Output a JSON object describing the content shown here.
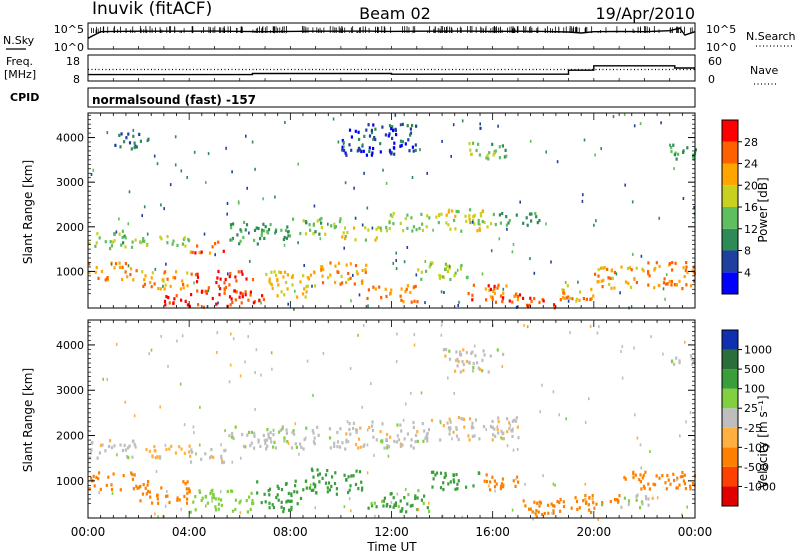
{
  "header": {
    "station": "Inuvik (fitACF)",
    "beam": "Beam 02",
    "date": "19/Apr/2010"
  },
  "strip": {
    "left_label": "N.Sky",
    "left_tick_top": "10^5",
    "left_tick_bottom": "10^0",
    "right_label": "N.Search",
    "right_tick_top": "10^5",
    "right_tick_bottom": "10^0"
  },
  "freq": {
    "label_line1": "Freq.",
    "label_line2": "[MHz]",
    "tick_top": "18",
    "tick_bottom": "8",
    "right_label": "Nave",
    "right_tick_top": "60",
    "right_tick_bottom": "0"
  },
  "cpid": {
    "label": "CPID",
    "text": "normalsound (fast) -157"
  },
  "power_panel": {
    "ylabel": "Slant Range [km]",
    "colorbar_label": "Power [dB]",
    "colorbar_ticks": [
      "28",
      "24",
      "20",
      "16",
      "12",
      "8",
      "4"
    ]
  },
  "velocity_panel": {
    "ylabel": "Slant Range [km]",
    "colorbar_label": "Velocity [m s⁻¹]",
    "colorbar_ticks": [
      "1000",
      "500",
      "100",
      "25",
      "-25",
      "-100",
      "-500",
      "-1000"
    ]
  },
  "xaxis": {
    "label": "Time UT",
    "ticks": [
      "00:00",
      "04:00",
      "08:00",
      "12:00",
      "16:00",
      "20:00",
      "00:00"
    ]
  },
  "colors": {
    "power_scale": [
      "#0000ff",
      "#2040a0",
      "#2e8b57",
      "#5fbf5f",
      "#c8d020",
      "#ffa500",
      "#ff6000",
      "#ff0000"
    ],
    "velocity_scale": [
      "#1030b0",
      "#2a6e3a",
      "#3a9e3a",
      "#80d040",
      "#bebebe",
      "#ffb040",
      "#ff8000",
      "#ff4000",
      "#e00000"
    ]
  },
  "chart_data": [
    {
      "type": "line",
      "title": "N.Sky / N.Search",
      "x_range_hours": [
        0,
        24
      ],
      "yscale": "log",
      "ylim": [
        "10^0",
        "10^5"
      ],
      "series": [
        {
          "name": "N.Sky",
          "x": [
            0,
            0.5,
            1,
            2,
            3,
            4,
            5,
            6,
            7,
            8,
            9,
            10,
            11,
            12,
            13,
            14,
            15,
            16,
            17,
            18,
            19,
            19.5,
            20,
            21,
            22,
            23,
            23.4,
            23.6,
            24
          ],
          "y": [
            100,
            3000,
            3500,
            4000,
            4000,
            3800,
            4200,
            3500,
            3000,
            3500,
            4000,
            3800,
            4200,
            3500,
            3800,
            4000,
            4200,
            3500,
            3800,
            3500,
            2500,
            1500,
            3000,
            3500,
            3000,
            5000,
            20000,
            500,
            3000
          ]
        },
        {
          "name": "N.Search",
          "style": "dotted",
          "x": [
            0,
            24
          ],
          "y": [
            1,
            1
          ]
        }
      ]
    },
    {
      "type": "line",
      "title": "Freq. [MHz] / Nave",
      "x_range_hours": [
        0,
        24
      ],
      "series": [
        {
          "name": "Freq.",
          "unit": "MHz",
          "x": [
            0,
            6.5,
            6.5,
            12,
            12,
            19,
            19,
            20,
            20,
            23.2,
            23.2,
            24
          ],
          "y": [
            10,
            10,
            10.5,
            10.5,
            10.2,
            10.2,
            12,
            12,
            14,
            14,
            13,
            13
          ]
        },
        {
          "name": "Nave",
          "style": "dotted",
          "ylim": [
            0,
            60
          ],
          "x": [
            0,
            24
          ],
          "y": [
            26,
            26
          ]
        }
      ]
    },
    {
      "type": "heatmap",
      "title": "Power [dB]",
      "xlabel": "Time UT",
      "ylabel": "Slant Range [km]",
      "x_range_hours": [
        0,
        24
      ],
      "ylim": [
        180,
        4550
      ],
      "zlim": [
        0,
        32
      ],
      "zunit": "dB",
      "regions": [
        {
          "t0": 0.0,
          "t1": 1.5,
          "r0": 1500,
          "r1": 1900,
          "z": 14
        },
        {
          "t0": 1.5,
          "t1": 4.0,
          "r0": 1500,
          "r1": 1800,
          "z": 16
        },
        {
          "t0": 4.0,
          "t1": 5.5,
          "r0": 1400,
          "r1": 1700,
          "z": 26
        },
        {
          "t0": 5.5,
          "t1": 8.0,
          "r0": 1600,
          "r1": 2100,
          "z": 12
        },
        {
          "t0": 8.0,
          "t1": 10.0,
          "r0": 1800,
          "r1": 2200,
          "z": 14
        },
        {
          "t0": 10.0,
          "t1": 11.5,
          "r0": 1700,
          "r1": 2000,
          "z": 18
        },
        {
          "t0": 11.5,
          "t1": 13.5,
          "r0": 1900,
          "r1": 2300,
          "z": 16
        },
        {
          "t0": 13.5,
          "t1": 16.0,
          "r0": 1900,
          "r1": 2400,
          "z": 18
        },
        {
          "t0": 16.0,
          "t1": 18.0,
          "r0": 2000,
          "r1": 2300,
          "z": 12
        },
        {
          "t0": 0.0,
          "t1": 2.0,
          "r0": 800,
          "r1": 1200,
          "z": 24
        },
        {
          "t0": 2.0,
          "t1": 4.0,
          "r0": 600,
          "r1": 1000,
          "z": 22
        },
        {
          "t0": 4.0,
          "t1": 6.5,
          "r0": 500,
          "r1": 1000,
          "z": 28
        },
        {
          "t0": 3.0,
          "t1": 7.0,
          "r0": 180,
          "r1": 500,
          "z": 29
        },
        {
          "t0": 7.0,
          "t1": 9.0,
          "r0": 400,
          "r1": 1000,
          "z": 20
        },
        {
          "t0": 9.0,
          "t1": 11.0,
          "r0": 700,
          "r1": 1200,
          "z": 22
        },
        {
          "t0": 11.0,
          "t1": 13.0,
          "r0": 300,
          "r1": 700,
          "z": 24
        },
        {
          "t0": 13.0,
          "t1": 15.0,
          "r0": 800,
          "r1": 1200,
          "z": 16
        },
        {
          "t0": 15.0,
          "t1": 17.0,
          "r0": 300,
          "r1": 700,
          "z": 26
        },
        {
          "t0": 17.0,
          "t1": 18.5,
          "r0": 180,
          "r1": 500,
          "z": 28
        },
        {
          "t0": 18.5,
          "t1": 20.0,
          "r0": 300,
          "r1": 700,
          "z": 22
        },
        {
          "t0": 20.0,
          "t1": 22.0,
          "r0": 600,
          "r1": 1100,
          "z": 22
        },
        {
          "t0": 22.0,
          "t1": 24.0,
          "r0": 600,
          "r1": 1200,
          "z": 24
        },
        {
          "t0": 15.0,
          "t1": 16.5,
          "r0": 3500,
          "r1": 3900,
          "z": 14
        },
        {
          "t0": 1.0,
          "t1": 2.5,
          "r0": 3700,
          "r1": 4100,
          "z": 8
        },
        {
          "t0": 10.0,
          "t1": 13.0,
          "r0": 3600,
          "r1": 4300,
          "z": 6
        },
        {
          "t0": 23.0,
          "t1": 24.0,
          "r0": 3500,
          "r1": 3900,
          "z": 12
        }
      ]
    },
    {
      "type": "heatmap",
      "title": "Velocity [m s⁻¹]",
      "xlabel": "Time UT",
      "ylabel": "Slant Range [km]",
      "x_range_hours": [
        0,
        24
      ],
      "ylim": [
        180,
        4550
      ],
      "zscale_ticks": [
        1000,
        500,
        100,
        25,
        -25,
        -100,
        -500,
        -1000
      ],
      "zunit": "m s⁻¹",
      "regions": [
        {
          "t0": 0.0,
          "t1": 2.0,
          "r0": 1500,
          "r1": 1900,
          "z": 0
        },
        {
          "t0": 2.0,
          "t1": 4.0,
          "r0": 1500,
          "r1": 1800,
          "z": -50
        },
        {
          "t0": 4.0,
          "t1": 5.5,
          "r0": 1400,
          "r1": 1700,
          "z": -10
        },
        {
          "t0": 5.5,
          "t1": 10.0,
          "r0": 1700,
          "r1": 2200,
          "z": 10
        },
        {
          "t0": 10.0,
          "t1": 13.5,
          "r0": 1700,
          "r1": 2300,
          "z": 0
        },
        {
          "t0": 13.5,
          "t1": 17.0,
          "r0": 1900,
          "r1": 2400,
          "z": -15
        },
        {
          "t0": 0.0,
          "t1": 2.0,
          "r0": 800,
          "r1": 1200,
          "z": -150
        },
        {
          "t0": 2.0,
          "t1": 4.0,
          "r0": 500,
          "r1": 1000,
          "z": -300
        },
        {
          "t0": 4.0,
          "t1": 6.5,
          "r0": 300,
          "r1": 800,
          "z": 60
        },
        {
          "t0": 6.5,
          "t1": 8.5,
          "r0": 300,
          "r1": 1000,
          "z": 200
        },
        {
          "t0": 8.5,
          "t1": 11.0,
          "r0": 700,
          "r1": 1300,
          "z": 300
        },
        {
          "t0": 11.0,
          "t1": 13.5,
          "r0": 300,
          "r1": 800,
          "z": 120
        },
        {
          "t0": 13.5,
          "t1": 15.5,
          "r0": 800,
          "r1": 1200,
          "z": 150
        },
        {
          "t0": 15.5,
          "t1": 17.0,
          "r0": 800,
          "r1": 1200,
          "z": -200
        },
        {
          "t0": 17.0,
          "t1": 19.0,
          "r0": 200,
          "r1": 600,
          "z": -150
        },
        {
          "t0": 19.0,
          "t1": 21.0,
          "r0": 300,
          "r1": 700,
          "z": -120
        },
        {
          "t0": 21.0,
          "t1": 22.5,
          "r0": 400,
          "r1": 700,
          "z": 0
        },
        {
          "t0": 21.0,
          "t1": 24.0,
          "r0": 800,
          "r1": 1200,
          "z": -250
        },
        {
          "t0": 14.0,
          "t1": 16.5,
          "r0": 3400,
          "r1": 3900,
          "z": 0
        },
        {
          "t0": 23.0,
          "t1": 24.0,
          "r0": 3500,
          "r1": 3800,
          "z": 5
        }
      ]
    }
  ]
}
